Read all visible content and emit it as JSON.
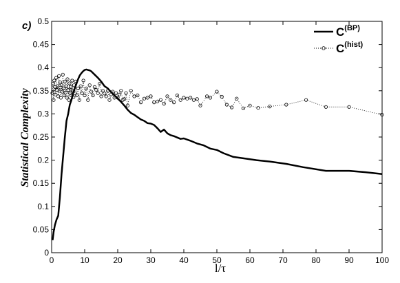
{
  "panel_label": "c)",
  "chart_data": {
    "type": "line",
    "xlabel": "l/τ",
    "ylabel": "Statistical Complexity",
    "xlim": [
      0,
      100
    ],
    "ylim": [
      0,
      0.5
    ],
    "xticks": [
      "0",
      "10",
      "20",
      "30",
      "40",
      "50",
      "60",
      "70",
      "80",
      "90",
      "100"
    ],
    "yticks": [
      "0",
      "0.05",
      "0.1",
      "0.15",
      "0.2",
      "0.25",
      "0.3",
      "0.35",
      "0.4",
      "0.45",
      "0.5"
    ],
    "grid": false,
    "legend_position": "top-right",
    "series": [
      {
        "name": "C(BP)",
        "legend_main": "C",
        "legend_sup": "(BP)",
        "style": "solid-thick",
        "color": "#000000",
        "x": [
          0.3,
          0.6,
          1,
          1.5,
          2,
          2.5,
          3,
          3.5,
          4,
          4.5,
          5,
          5.5,
          6,
          6.5,
          7,
          7.5,
          8,
          8.5,
          9,
          9.5,
          10,
          10.5,
          11,
          11.5,
          12,
          13,
          14,
          15,
          16,
          17,
          18,
          19,
          20,
          21,
          22,
          23,
          24,
          25,
          26,
          27,
          28,
          29,
          30,
          31,
          32,
          33,
          34,
          35,
          36,
          37,
          38,
          39,
          40,
          42,
          44,
          46,
          48,
          50,
          52,
          55,
          58,
          62,
          66,
          71,
          76,
          83,
          90,
          95,
          100
        ],
        "y": [
          0.027,
          0.045,
          0.06,
          0.072,
          0.08,
          0.12,
          0.17,
          0.21,
          0.25,
          0.285,
          0.3,
          0.32,
          0.33,
          0.345,
          0.355,
          0.365,
          0.375,
          0.383,
          0.388,
          0.392,
          0.395,
          0.396,
          0.395,
          0.394,
          0.392,
          0.385,
          0.378,
          0.37,
          0.36,
          0.355,
          0.347,
          0.34,
          0.333,
          0.326,
          0.318,
          0.309,
          0.302,
          0.298,
          0.293,
          0.288,
          0.285,
          0.28,
          0.279,
          0.276,
          0.269,
          0.261,
          0.266,
          0.258,
          0.254,
          0.252,
          0.249,
          0.246,
          0.247,
          0.242,
          0.236,
          0.232,
          0.225,
          0.222,
          0.215,
          0.207,
          0.204,
          0.2,
          0.197,
          0.192,
          0.185,
          0.177,
          0.177,
          0.174,
          0.17
        ]
      },
      {
        "name": "C(hist)",
        "legend_main": "C",
        "legend_sup": "(hist)",
        "style": "dotted-circles",
        "color": "#000000",
        "x": [
          0.2,
          0.4,
          0.6,
          0.8,
          1.0,
          1.2,
          1.4,
          1.6,
          1.8,
          2.0,
          2.2,
          2.4,
          2.6,
          2.8,
          3.0,
          3.2,
          3.4,
          3.6,
          3.8,
          4.0,
          4.2,
          4.4,
          4.6,
          4.8,
          5.0,
          5.2,
          5.4,
          5.6,
          5.8,
          6.0,
          6.2,
          6.4,
          6.6,
          6.8,
          7.0,
          7.3,
          7.6,
          8.0,
          8.4,
          8.8,
          9.2,
          9.6,
          10,
          10.5,
          11,
          11.5,
          12,
          12.5,
          13,
          13.5,
          14,
          14.5,
          15,
          15.5,
          16,
          16.5,
          17,
          17.5,
          18,
          18.5,
          19,
          19.5,
          20,
          20.5,
          21,
          21.5,
          22,
          22.5,
          23,
          24,
          25,
          26,
          27,
          28,
          29,
          30,
          31,
          32,
          33,
          34,
          35,
          36,
          37,
          38,
          39,
          40,
          41,
          42,
          43,
          44,
          45,
          47,
          48,
          50,
          51.5,
          53,
          54.5,
          56,
          58,
          60,
          62.5,
          66,
          71,
          77,
          83,
          90,
          100
        ],
        "y": [
          0.345,
          0.365,
          0.33,
          0.372,
          0.358,
          0.342,
          0.378,
          0.352,
          0.36,
          0.338,
          0.382,
          0.35,
          0.368,
          0.335,
          0.362,
          0.348,
          0.385,
          0.355,
          0.34,
          0.37,
          0.346,
          0.36,
          0.335,
          0.375,
          0.352,
          0.33,
          0.366,
          0.345,
          0.358,
          0.34,
          0.372,
          0.35,
          0.336,
          0.362,
          0.345,
          0.37,
          0.34,
          0.355,
          0.33,
          0.36,
          0.345,
          0.372,
          0.34,
          0.355,
          0.33,
          0.362,
          0.348,
          0.34,
          0.358,
          0.352,
          0.345,
          0.365,
          0.338,
          0.35,
          0.344,
          0.338,
          0.35,
          0.33,
          0.342,
          0.348,
          0.335,
          0.345,
          0.335,
          0.342,
          0.35,
          0.33,
          0.332,
          0.345,
          0.318,
          0.35,
          0.338,
          0.34,
          0.325,
          0.333,
          0.335,
          0.338,
          0.325,
          0.327,
          0.33,
          0.322,
          0.338,
          0.33,
          0.325,
          0.34,
          0.33,
          0.335,
          0.333,
          0.335,
          0.33,
          0.332,
          0.318,
          0.338,
          0.335,
          0.348,
          0.337,
          0.32,
          0.314,
          0.333,
          0.312,
          0.318,
          0.313,
          0.316,
          0.32,
          0.33,
          0.315,
          0.315,
          0.298
        ]
      }
    ]
  }
}
